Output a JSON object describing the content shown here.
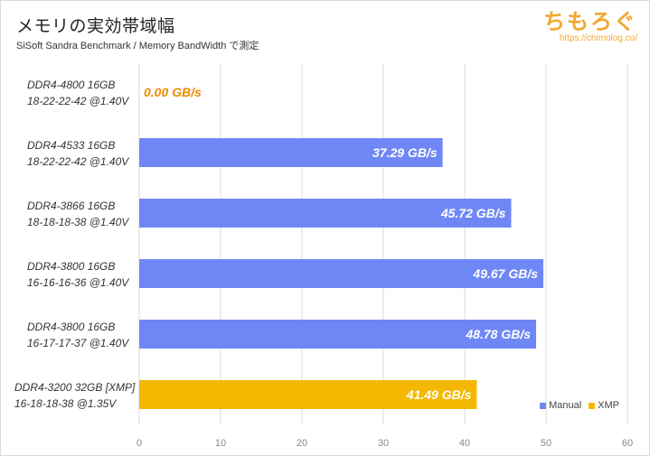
{
  "header": {
    "title": "メモリの実効帯域幅",
    "subtitle": "SiSoft Sandra Benchmark / Memory BandWidth で測定",
    "logo": "ちもろぐ",
    "logo_url": "https://chimolog.co/"
  },
  "colors": {
    "manual": "#6f87f5",
    "xmp": "#f5b800",
    "label_light": "#ffffff",
    "label_zero": "#f08a00",
    "grid": "#d9d9d9"
  },
  "chart_data": {
    "type": "bar",
    "orientation": "horizontal",
    "categories": [
      [
        "DDR4-4800 16GB",
        "18-22-22-42 @1.40V"
      ],
      [
        "DDR4-4533 16GB",
        "18-22-22-42 @1.40V"
      ],
      [
        "DDR4-3866 16GB",
        "18-18-18-38 @1.40V"
      ],
      [
        "DDR4-3800 16GB",
        "16-16-16-36 @1.40V"
      ],
      [
        "DDR4-3800 16GB",
        "16-17-17-37 @1.40V"
      ],
      [
        "DDR4-3200 32GB [XMP]",
        "16-18-18-38 @1.35V"
      ]
    ],
    "values": [
      0.0,
      37.29,
      45.72,
      49.67,
      48.78,
      41.49
    ],
    "value_labels": [
      "0.00 GB/s",
      "37.29 GB/s",
      "45.72 GB/s",
      "49.67 GB/s",
      "48.78 GB/s",
      "41.49 GB/s"
    ],
    "series_of_bar": [
      "Manual",
      "Manual",
      "Manual",
      "Manual",
      "Manual",
      "XMP"
    ],
    "series": [
      {
        "name": "Manual",
        "color": "#6f87f5"
      },
      {
        "name": "XMP",
        "color": "#f5b800"
      }
    ],
    "xlim": [
      0,
      60
    ],
    "xticks": [
      0,
      10,
      20,
      30,
      40,
      50,
      60
    ],
    "grid": true,
    "legend_position": "bottom-right"
  }
}
